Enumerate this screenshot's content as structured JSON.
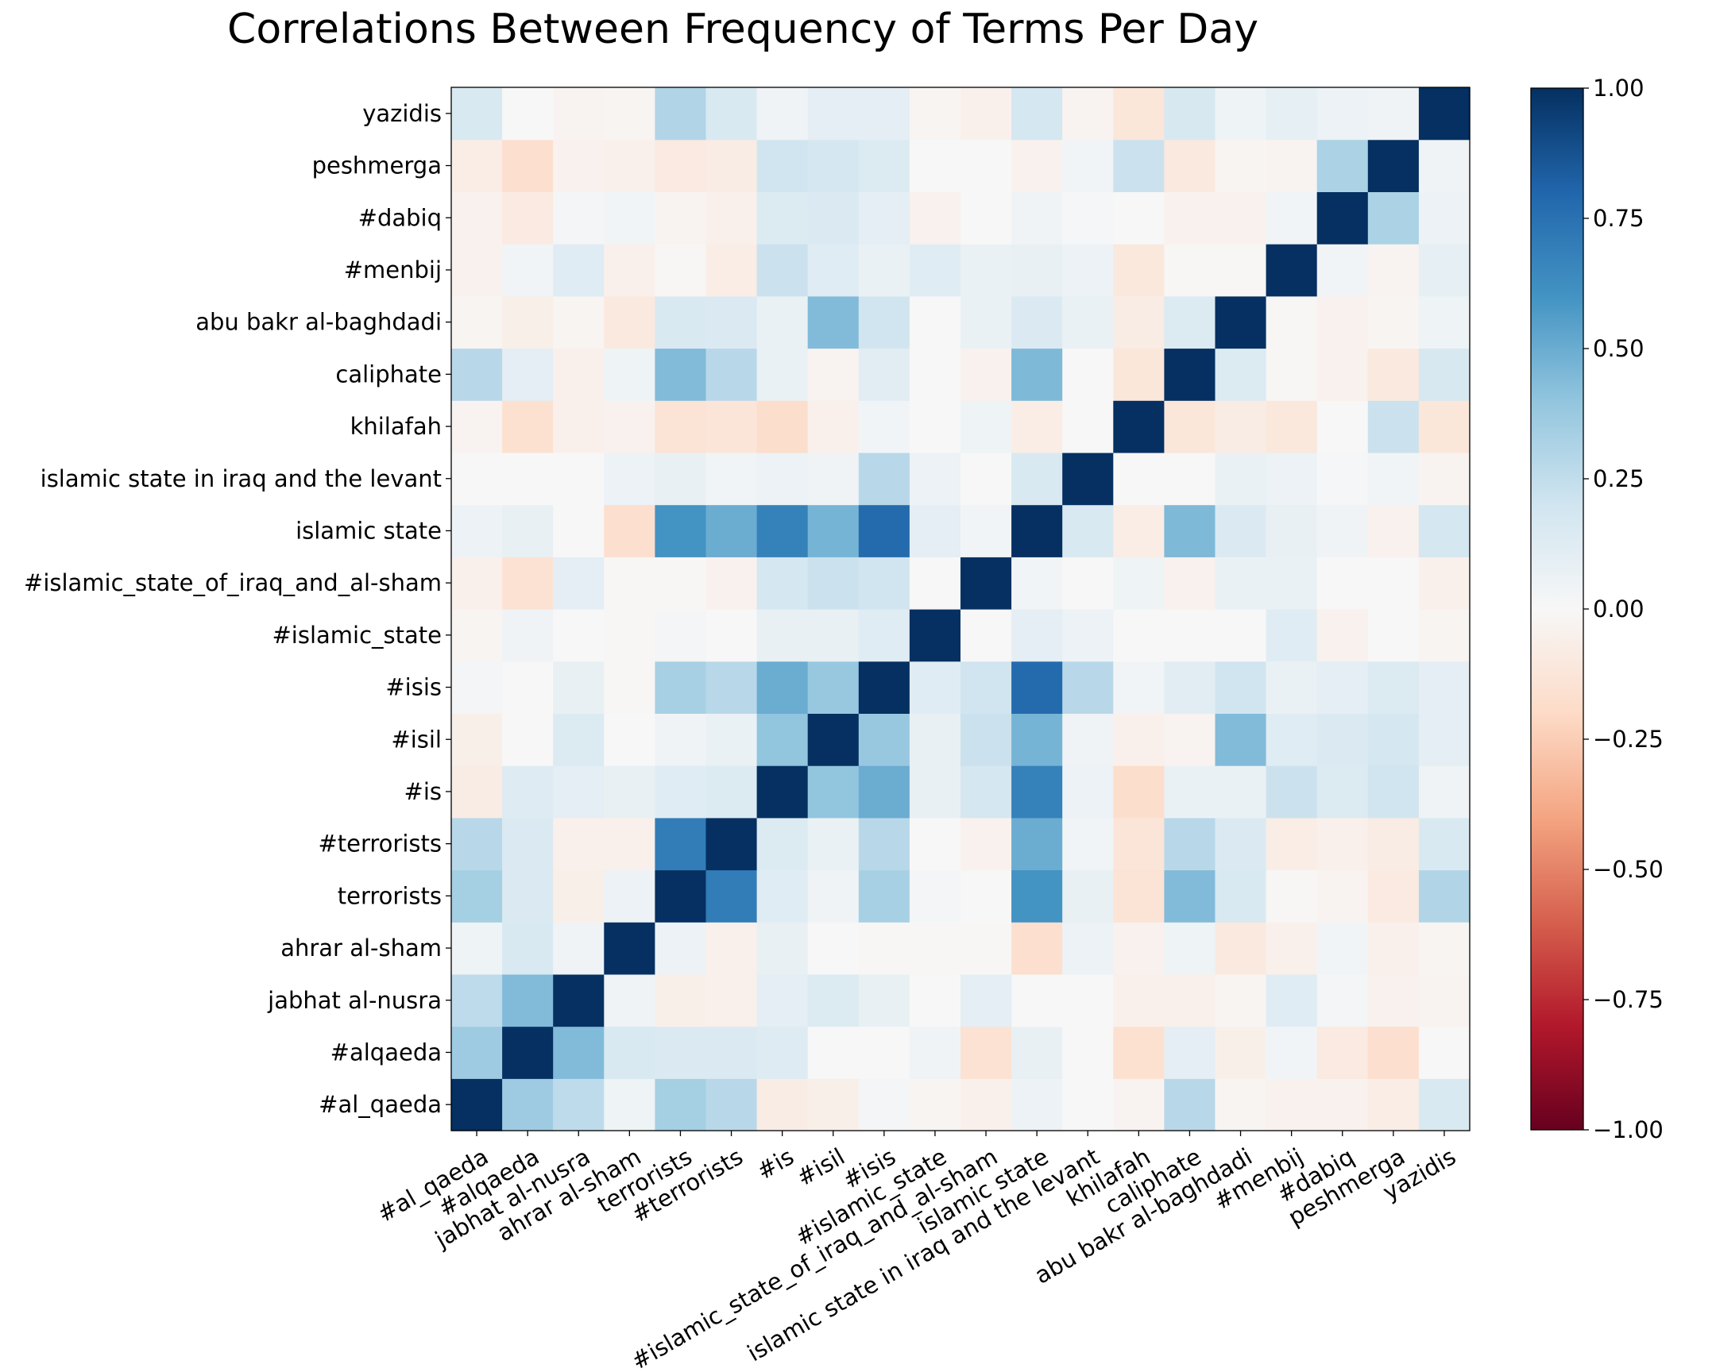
{
  "chart_data": {
    "type": "heatmap",
    "title": "Correlations Between Frequency of Terms Per Day",
    "labels": [
      "#al_qaeda",
      "#alqaeda",
      "jabhat al-nusra",
      "ahrar al-sham",
      "terrorists",
      "#terrorists",
      "#is",
      "#isil",
      "#isis",
      "#islamic_state",
      "#islamic_state_of_iraq_and_al-sham",
      "islamic state",
      "islamic state in iraq and the levant",
      "khilafah",
      "caliphate",
      "abu bakr al-baghdadi",
      "#menbij",
      "#dabiq",
      "peshmerga",
      "yazidis"
    ],
    "x_order": "left-to-right",
    "y_order": "bottom-to-top",
    "colormap": "RdBu",
    "vmin": -1.0,
    "vmax": 1.0,
    "colorbar_ticks": [
      "1.00",
      "0.75",
      "0.50",
      "0.25",
      "0.00",
      "−0.25",
      "−0.50",
      "−0.75",
      "−1.00"
    ],
    "colorbar_tick_values": [
      1.0,
      0.75,
      0.5,
      0.25,
      0.0,
      -0.25,
      -0.5,
      -0.75,
      -1.0
    ],
    "matrix": [
      [
        1.0,
        0.36,
        0.26,
        0.05,
        0.34,
        0.28,
        -0.08,
        -0.06,
        0.02,
        -0.02,
        -0.05,
        0.06,
        0.0,
        -0.03,
        0.28,
        -0.02,
        -0.04,
        -0.04,
        -0.07,
        0.16
      ],
      [
        0.36,
        1.0,
        0.44,
        0.16,
        0.15,
        0.15,
        0.13,
        0.0,
        0.0,
        0.04,
        -0.15,
        0.08,
        0.0,
        -0.16,
        0.1,
        -0.06,
        0.03,
        -0.09,
        -0.17,
        0.0
      ],
      [
        0.26,
        0.44,
        1.0,
        0.04,
        -0.06,
        -0.05,
        0.1,
        0.14,
        0.08,
        0.0,
        0.1,
        0.0,
        0.0,
        -0.05,
        -0.05,
        -0.02,
        0.12,
        0.02,
        -0.04,
        -0.03
      ],
      [
        0.05,
        0.16,
        0.04,
        1.0,
        0.06,
        -0.05,
        0.08,
        0.0,
        -0.01,
        -0.01,
        -0.01,
        -0.17,
        0.06,
        -0.04,
        0.05,
        -0.1,
        -0.05,
        0.03,
        -0.05,
        -0.02
      ],
      [
        0.34,
        0.15,
        -0.06,
        0.06,
        1.0,
        0.7,
        0.12,
        0.04,
        0.33,
        0.02,
        0.0,
        0.6,
        0.08,
        -0.14,
        0.44,
        0.16,
        -0.01,
        -0.03,
        -0.09,
        0.3
      ],
      [
        0.28,
        0.15,
        -0.05,
        -0.05,
        0.7,
        1.0,
        0.14,
        0.07,
        0.28,
        0.0,
        -0.04,
        0.5,
        0.03,
        -0.13,
        0.28,
        0.15,
        -0.07,
        -0.05,
        -0.08,
        0.16
      ],
      [
        -0.08,
        0.13,
        0.1,
        0.08,
        0.12,
        0.14,
        1.0,
        0.4,
        0.5,
        0.08,
        0.18,
        0.68,
        0.06,
        -0.18,
        0.07,
        0.07,
        0.22,
        0.14,
        0.2,
        0.04
      ],
      [
        -0.06,
        0.0,
        0.14,
        0.0,
        0.04,
        0.07,
        0.4,
        1.0,
        0.38,
        0.08,
        0.22,
        0.47,
        0.04,
        -0.05,
        -0.03,
        0.44,
        0.12,
        0.15,
        0.18,
        0.1
      ],
      [
        0.02,
        0.0,
        0.08,
        -0.01,
        0.33,
        0.28,
        0.5,
        0.38,
        1.0,
        0.12,
        0.2,
        0.78,
        0.28,
        0.03,
        0.11,
        0.2,
        0.07,
        0.1,
        0.14,
        0.1
      ],
      [
        -0.02,
        0.04,
        0.0,
        -0.01,
        0.02,
        0.0,
        0.08,
        0.08,
        0.12,
        1.0,
        0.0,
        0.1,
        0.06,
        0.0,
        0.0,
        0.0,
        0.12,
        -0.04,
        0.0,
        -0.02
      ],
      [
        -0.05,
        -0.15,
        0.1,
        -0.01,
        -0.01,
        -0.04,
        0.18,
        0.22,
        0.2,
        0.0,
        1.0,
        0.03,
        0.0,
        0.05,
        -0.04,
        0.07,
        0.07,
        0.0,
        0.0,
        -0.05
      ],
      [
        0.06,
        0.08,
        0.0,
        -0.17,
        0.6,
        0.5,
        0.68,
        0.47,
        0.78,
        0.1,
        0.03,
        1.0,
        0.16,
        -0.07,
        0.45,
        0.15,
        0.08,
        0.04,
        -0.04,
        0.18
      ],
      [
        0.0,
        0.0,
        0.0,
        0.06,
        0.08,
        0.03,
        0.06,
        0.04,
        0.28,
        0.06,
        0.0,
        0.16,
        1.0,
        0.0,
        0.0,
        0.07,
        0.06,
        0.01,
        0.03,
        -0.03
      ],
      [
        -0.03,
        -0.16,
        -0.05,
        -0.04,
        -0.14,
        -0.13,
        -0.18,
        -0.05,
        0.03,
        0.0,
        0.05,
        -0.07,
        0.0,
        1.0,
        -0.12,
        -0.08,
        -0.11,
        0.0,
        0.22,
        -0.12
      ],
      [
        0.28,
        0.1,
        -0.05,
        0.05,
        0.44,
        0.28,
        0.07,
        -0.03,
        0.11,
        0.0,
        -0.04,
        0.45,
        0.0,
        -0.12,
        1.0,
        0.14,
        -0.01,
        -0.04,
        -0.1,
        0.17
      ],
      [
        -0.02,
        -0.06,
        -0.02,
        -0.1,
        0.16,
        0.15,
        0.07,
        0.44,
        0.2,
        0.0,
        0.07,
        0.15,
        0.07,
        -0.08,
        0.14,
        1.0,
        -0.01,
        -0.04,
        -0.02,
        0.05
      ],
      [
        -0.04,
        0.03,
        0.12,
        -0.05,
        -0.01,
        -0.07,
        0.22,
        0.12,
        0.07,
        0.12,
        0.07,
        0.08,
        0.06,
        -0.11,
        -0.01,
        -0.01,
        1.0,
        0.03,
        -0.03,
        0.09
      ],
      [
        -0.04,
        -0.09,
        0.02,
        0.03,
        -0.03,
        -0.05,
        0.14,
        0.15,
        0.1,
        -0.04,
        0.0,
        0.04,
        0.01,
        0.0,
        -0.04,
        -0.04,
        0.03,
        1.0,
        0.32,
        0.06
      ],
      [
        -0.07,
        -0.17,
        -0.04,
        -0.05,
        -0.09,
        -0.08,
        0.2,
        0.18,
        0.14,
        0.0,
        0.0,
        -0.04,
        0.03,
        0.22,
        -0.1,
        -0.02,
        -0.03,
        0.32,
        1.0,
        0.04
      ],
      [
        0.16,
        0.0,
        -0.03,
        -0.02,
        0.3,
        0.16,
        0.04,
        0.1,
        0.1,
        -0.02,
        -0.05,
        0.18,
        -0.03,
        -0.12,
        0.17,
        0.05,
        0.09,
        0.06,
        0.04,
        1.0
      ]
    ]
  }
}
